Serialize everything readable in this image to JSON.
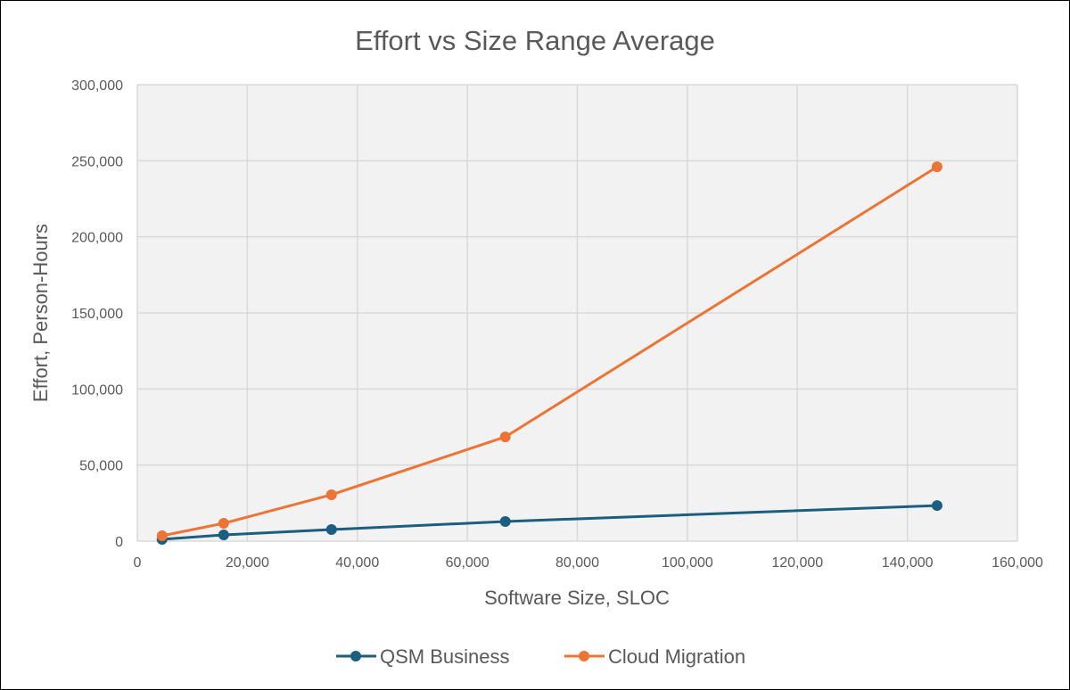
{
  "chart_data": {
    "type": "line",
    "title": "Effort vs Size Range Average",
    "xlabel": "Software Size, SLOC",
    "ylabel": "Effort, Person-Hours",
    "xlim": [
      0,
      160000
    ],
    "ylim": [
      0,
      300000
    ],
    "x_ticks": [
      "0",
      "20,000",
      "40,000",
      "60,000",
      "80,000",
      "100,000",
      "120,000",
      "140,000",
      "160,000"
    ],
    "y_ticks": [
      "0",
      "50,000",
      "100,000",
      "150,000",
      "200,000",
      "250,000",
      "300,000"
    ],
    "grid": true,
    "legend_position": "bottom",
    "series": [
      {
        "name": "QSM Business",
        "color": "#1b5e80",
        "x": [
          4500,
          15700,
          35300,
          66900,
          145400
        ],
        "values": [
          1200,
          4100,
          7600,
          12900,
          23400
        ]
      },
      {
        "name": "Cloud Migration",
        "color": "#ed7434",
        "x": [
          4500,
          15700,
          35300,
          66900,
          145400
        ],
        "values": [
          3500,
          11700,
          30500,
          68500,
          246000
        ]
      }
    ]
  }
}
